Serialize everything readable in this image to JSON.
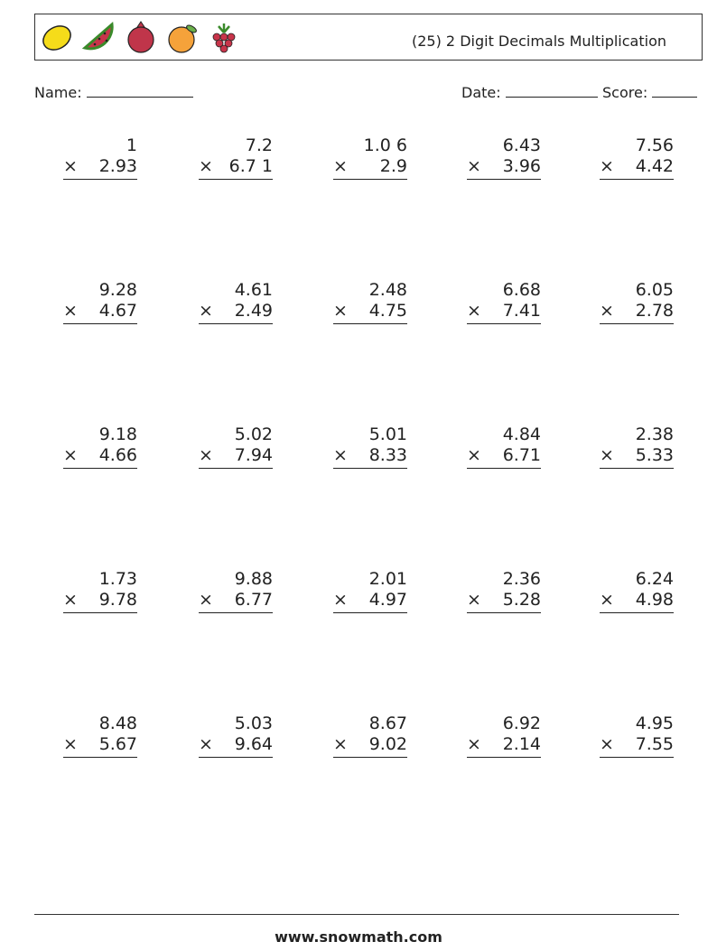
{
  "header": {
    "title": "(25) 2 Digit Decimals Multiplication",
    "icons": [
      "lemon-icon",
      "watermelon-icon",
      "pomegranate-icon",
      "orange-icon",
      "raspberry-icon"
    ]
  },
  "fields": {
    "name_label": "Name:",
    "date_label": "Date:",
    "score_label": "Score:"
  },
  "operator": "×",
  "problems": [
    [
      {
        "a": "1",
        "b": "2.93"
      },
      {
        "a": "7.2",
        "b": "6.7 1"
      },
      {
        "a": "1.0 6",
        "b": "2.9"
      },
      {
        "a": "6.43",
        "b": "3.96"
      },
      {
        "a": "7.56",
        "b": "4.42"
      }
    ],
    [
      {
        "a": "9.28",
        "b": "4.67"
      },
      {
        "a": "4.61",
        "b": "2.49"
      },
      {
        "a": "2.48",
        "b": "4.75"
      },
      {
        "a": "6.68",
        "b": "7.41"
      },
      {
        "a": "6.05",
        "b": "2.78"
      }
    ],
    [
      {
        "a": "9.18",
        "b": "4.66"
      },
      {
        "a": "5.02",
        "b": "7.94"
      },
      {
        "a": "5.01",
        "b": "8.33"
      },
      {
        "a": "4.84",
        "b": "6.71"
      },
      {
        "a": "2.38",
        "b": "5.33"
      }
    ],
    [
      {
        "a": "1.73",
        "b": "9.78"
      },
      {
        "a": "9.88",
        "b": "6.77"
      },
      {
        "a": "2.01",
        "b": "4.97"
      },
      {
        "a": "2.36",
        "b": "5.28"
      },
      {
        "a": "6.24",
        "b": "4.98"
      }
    ],
    [
      {
        "a": "8.48",
        "b": "5.67"
      },
      {
        "a": "5.03",
        "b": "9.64"
      },
      {
        "a": "8.67",
        "b": "9.02"
      },
      {
        "a": "6.92",
        "b": "2.14"
      },
      {
        "a": "4.95",
        "b": "7.55"
      }
    ]
  ],
  "footer": {
    "site": "www.snowmath.com"
  }
}
